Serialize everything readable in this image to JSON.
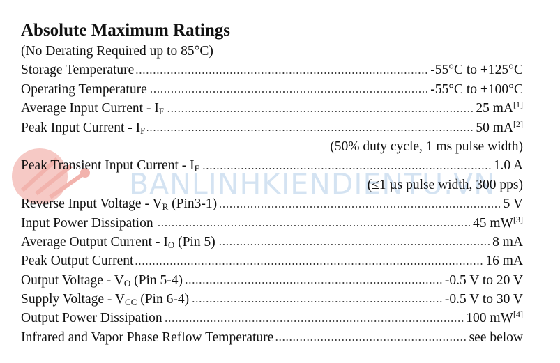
{
  "title": "Absolute Maximum Ratings",
  "subtitle": "(No Derating Required up to 85°C)",
  "watermark": "BANLINHKIENDIENTU.VN",
  "items": [
    {
      "label": "Storage Temperature",
      "value": "-55°C to +125°C"
    },
    {
      "label": "Operating Temperature",
      "value": "-55°C to +100°C"
    },
    {
      "label": "Average Input Current - I",
      "sub": "F",
      "value": "25 mA",
      "sup": "[1]"
    },
    {
      "label": "Peak Input Current - I",
      "sub": "F",
      "value": "50 mA",
      "sup": "[2]"
    },
    {
      "note": "(50% duty cycle, 1 ms pulse width)"
    },
    {
      "label": "Peak Transient Input Current - I",
      "sub": "F",
      "value": "1.0 A"
    },
    {
      "note": "(≤1 µs pulse width, 300 pps)"
    },
    {
      "label": "Reverse Input Voltage - V",
      "sub": "R",
      "after": " (Pin3-1)",
      "value": "5 V"
    },
    {
      "label": "Input Power Dissipation",
      "value": "45 mW",
      "sup": "[3]"
    },
    {
      "label": "Average Output Current - I",
      "sub": "O",
      "after": " (Pin 5)",
      "value": "8 mA"
    },
    {
      "label": "Peak Output Current",
      "value": "16 mA"
    },
    {
      "label": "Output Voltage - V",
      "sub": "O",
      "after": " (Pin 5-4)",
      "value": "-0.5 V to 20 V"
    },
    {
      "label": "Supply Voltage - V",
      "sub": "CC",
      "after": " (Pin 6-4)",
      "value": "-0.5 V to 30 V"
    },
    {
      "label": "Output Power Dissipation",
      "value": "100 mW",
      "sup": "[4]"
    },
    {
      "label": "Infrared and Vapor Phase Reflow Temperature",
      "value": "see below"
    }
  ]
}
